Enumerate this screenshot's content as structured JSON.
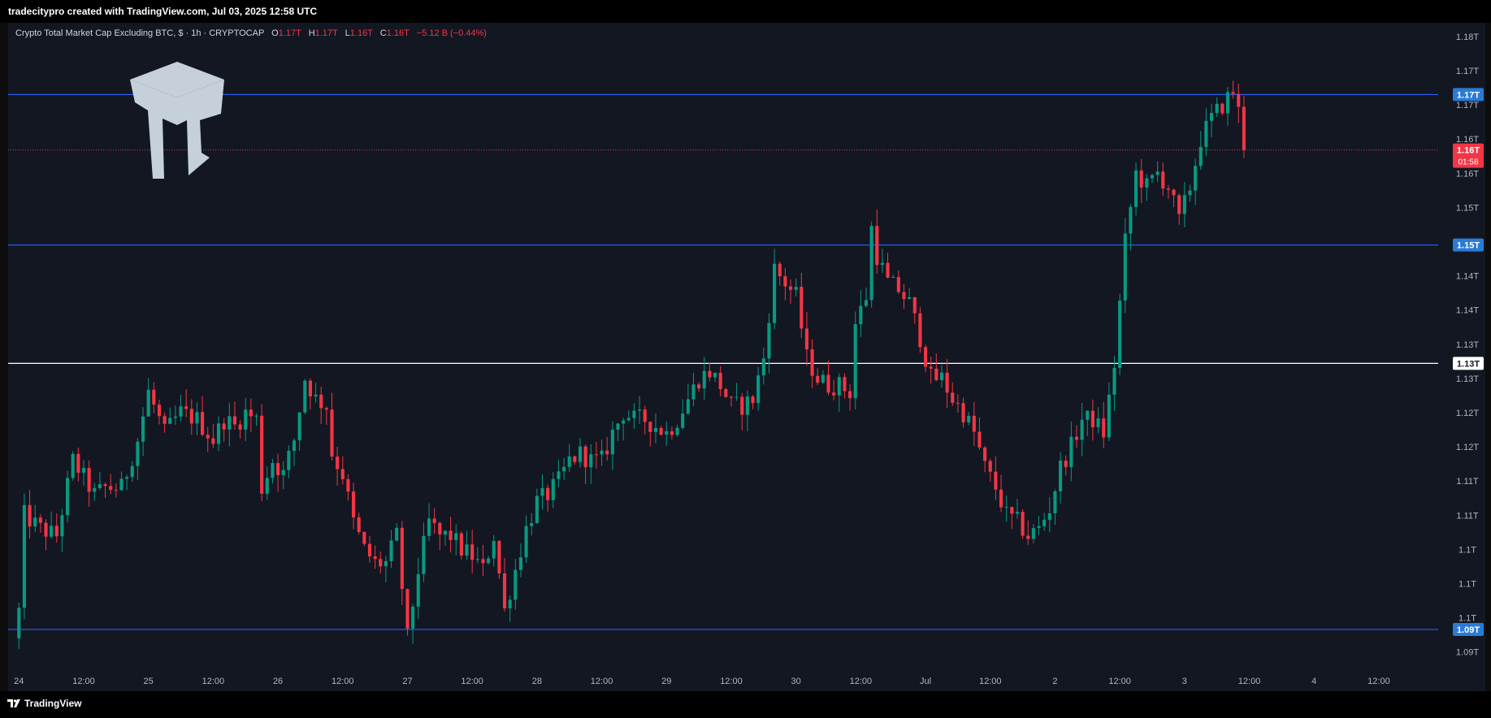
{
  "header": {
    "text": "tradecitypro created with TradingView.com, Jul 03, 2025 12:58 UTC"
  },
  "legend": {
    "symbol": "Crypto Total Market Cap Excluding BTC, $ · 1h · CRYPTOCAP",
    "open_key": "O",
    "open": "1.17T",
    "high_key": "H",
    "high": "1.17T",
    "low_key": "L",
    "low": "1.16T",
    "close_key": "C",
    "close": "1.16T",
    "change": "−5.12 B (−0.44%)"
  },
  "footer": {
    "brand": "TradingView"
  },
  "colors": {
    "background": "#131722",
    "up": "#089981",
    "down": "#f23645",
    "line_blue": "#2962ff",
    "line_white": "#ffffff"
  },
  "chart_data": {
    "type": "candlestick",
    "interval": "1h",
    "y_unit": "T",
    "ylim": [
      1.087,
      1.182
    ],
    "y_tick_labels": [
      "1.18T",
      "1.17T",
      "1.17T",
      "1.16T",
      "1.16T",
      "1.15T",
      "1.15T",
      "1.14T",
      "1.14T",
      "1.13T",
      "1.13T",
      "1.12T",
      "1.12T",
      "1.11T",
      "1.11T",
      "1.1T",
      "1.1T",
      "1.1T",
      "1.09T"
    ],
    "y_tick_values": [
      1.18,
      1.175,
      1.17,
      1.165,
      1.16,
      1.155,
      1.15,
      1.145,
      1.14,
      1.135,
      1.13,
      1.125,
      1.12,
      1.115,
      1.11,
      1.105,
      1.1,
      1.095,
      1.09
    ],
    "x_tick_labels": [
      "24",
      "12:00",
      "25",
      "12:00",
      "26",
      "12:00",
      "27",
      "12:00",
      "28",
      "12:00",
      "29",
      "12:00",
      "30",
      "12:00",
      "Jul",
      "12:00",
      "2",
      "12:00",
      "3",
      "12:00",
      "4",
      "12:00"
    ],
    "x_tick_hours": [
      0,
      12,
      24,
      36,
      48,
      60,
      72,
      84,
      96,
      108,
      120,
      132,
      144,
      156,
      168,
      180,
      192,
      204,
      216,
      228,
      240,
      252
    ],
    "x_range_hours": [
      -2,
      263
    ],
    "horizontal_lines": [
      {
        "value": 1.1715,
        "label": "1.17T",
        "color": "#2962ff"
      },
      {
        "value": 1.1495,
        "label": "1.15T",
        "color": "#2962ff"
      },
      {
        "value": 1.1322,
        "label": "1.13T",
        "color": "#ffffff"
      },
      {
        "value": 1.0933,
        "label": "1.09T",
        "color": "#2962ff"
      }
    ],
    "last_price": {
      "value": 1.1634,
      "label": "1.16T",
      "countdown": "01:58"
    },
    "anchors": [
      [
        0,
        1.096
      ],
      [
        1,
        1.11
      ],
      [
        4,
        1.108
      ],
      [
        7,
        1.107
      ],
      [
        10,
        1.118
      ],
      [
        14,
        1.113
      ],
      [
        16,
        1.114
      ],
      [
        19,
        1.114
      ],
      [
        22,
        1.121
      ],
      [
        24,
        1.128
      ],
      [
        27,
        1.122
      ],
      [
        30,
        1.125
      ],
      [
        33,
        1.124
      ],
      [
        36,
        1.121
      ],
      [
        38,
        1.124
      ],
      [
        40,
        1.123
      ],
      [
        42,
        1.125
      ],
      [
        44,
        1.124
      ],
      [
        45,
        1.114
      ],
      [
        47,
        1.118
      ],
      [
        49,
        1.116
      ],
      [
        51,
        1.121
      ],
      [
        53,
        1.13
      ],
      [
        55,
        1.127
      ],
      [
        57,
        1.126
      ],
      [
        58,
        1.119
      ],
      [
        60,
        1.116
      ],
      [
        62,
        1.109
      ],
      [
        64,
        1.105
      ],
      [
        66,
        1.103
      ],
      [
        68,
        1.103
      ],
      [
        70,
        1.107
      ],
      [
        72,
        1.092
      ],
      [
        74,
        1.102
      ],
      [
        76,
        1.109
      ],
      [
        78,
        1.107
      ],
      [
        80,
        1.107
      ],
      [
        82,
        1.105
      ],
      [
        84,
        1.104
      ],
      [
        86,
        1.102
      ],
      [
        88,
        1.107
      ],
      [
        90,
        1.096
      ],
      [
        92,
        1.102
      ],
      [
        94,
        1.108
      ],
      [
        96,
        1.112
      ],
      [
        98,
        1.113
      ],
      [
        100,
        1.115
      ],
      [
        102,
        1.118
      ],
      [
        104,
        1.119
      ],
      [
        106,
        1.118
      ],
      [
        108,
        1.118
      ],
      [
        110,
        1.122
      ],
      [
        112,
        1.125
      ],
      [
        114,
        1.124
      ],
      [
        116,
        1.124
      ],
      [
        118,
        1.123
      ],
      [
        120,
        1.122
      ],
      [
        122,
        1.124
      ],
      [
        124,
        1.127
      ],
      [
        126,
        1.13
      ],
      [
        128,
        1.131
      ],
      [
        130,
        1.129
      ],
      [
        132,
        1.126
      ],
      [
        134,
        1.126
      ],
      [
        136,
        1.127
      ],
      [
        138,
        1.133
      ],
      [
        140,
        1.146
      ],
      [
        142,
        1.144
      ],
      [
        144,
        1.142
      ],
      [
        146,
        1.133
      ],
      [
        148,
        1.13
      ],
      [
        150,
        1.129
      ],
      [
        152,
        1.129
      ],
      [
        154,
        1.128
      ],
      [
        155,
        1.138
      ],
      [
        157,
        1.142
      ],
      [
        158,
        1.152
      ],
      [
        159,
        1.148
      ],
      [
        161,
        1.144
      ],
      [
        163,
        1.143
      ],
      [
        165,
        1.141
      ],
      [
        167,
        1.136
      ],
      [
        169,
        1.13
      ],
      [
        171,
        1.13
      ],
      [
        173,
        1.127
      ],
      [
        175,
        1.125
      ],
      [
        177,
        1.122
      ],
      [
        179,
        1.117
      ],
      [
        181,
        1.114
      ],
      [
        183,
        1.11
      ],
      [
        185,
        1.109
      ],
      [
        187,
        1.107
      ],
      [
        189,
        1.108
      ],
      [
        191,
        1.111
      ],
      [
        193,
        1.117
      ],
      [
        195,
        1.12
      ],
      [
        197,
        1.124
      ],
      [
        199,
        1.124
      ],
      [
        201,
        1.122
      ],
      [
        203,
        1.132
      ],
      [
        205,
        1.15
      ],
      [
        207,
        1.16
      ],
      [
        209,
        1.158
      ],
      [
        211,
        1.16
      ],
      [
        213,
        1.158
      ],
      [
        215,
        1.153
      ],
      [
        217,
        1.158
      ],
      [
        219,
        1.165
      ],
      [
        221,
        1.168
      ],
      [
        223,
        1.17
      ],
      [
        225,
        1.172
      ],
      [
        226,
        1.169
      ],
      [
        227,
        1.1634
      ]
    ]
  }
}
